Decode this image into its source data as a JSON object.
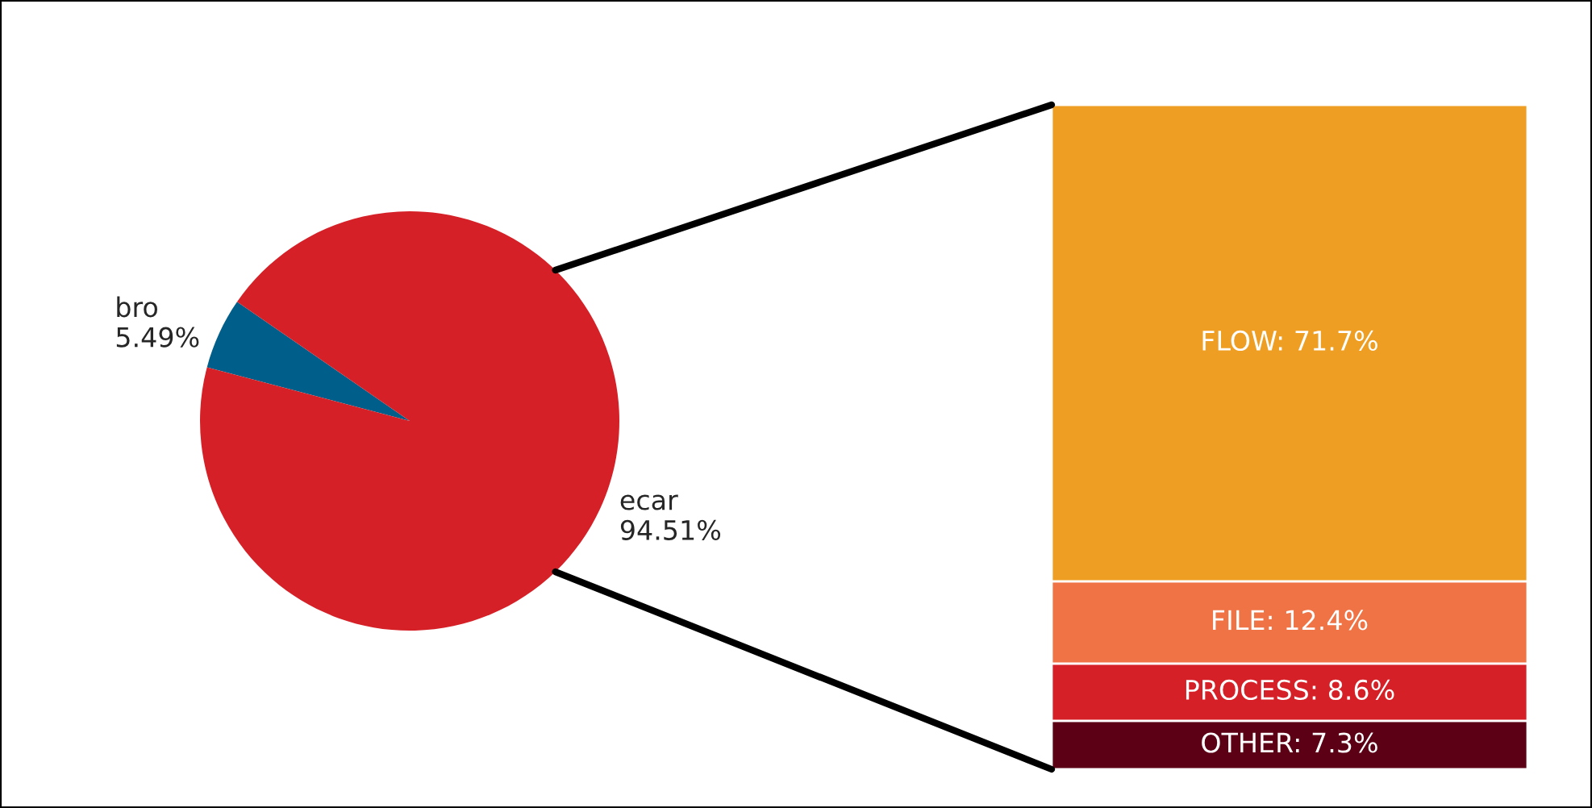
{
  "chart_data": [
    {
      "type": "pie",
      "categories": [
        "bro",
        "ecar"
      ],
      "values": [
        5.49,
        94.51
      ],
      "colors": [
        "#005f8a",
        "#d62027"
      ],
      "value_labels": [
        "5.49%",
        "94.51%"
      ]
    },
    {
      "type": "bar",
      "stacked": true,
      "categories": [
        null
      ],
      "series": [
        {
          "color": "#5c0016",
          "values": [
            7.3
          ],
          "value_labels": [
            "OTHER: 7.3%"
          ]
        },
        {
          "color": "#d62027",
          "values": [
            8.6
          ],
          "value_labels": [
            "PROCESS: 8.6%"
          ]
        },
        {
          "color": "#ef7345",
          "values": [
            12.4
          ],
          "value_labels": [
            "FILE: 12.4%"
          ]
        },
        {
          "color": "#ee9e22",
          "values": [
            71.7
          ],
          "value_labels": [
            "FLOW: 71.7%"
          ]
        }
      ]
    }
  ]
}
